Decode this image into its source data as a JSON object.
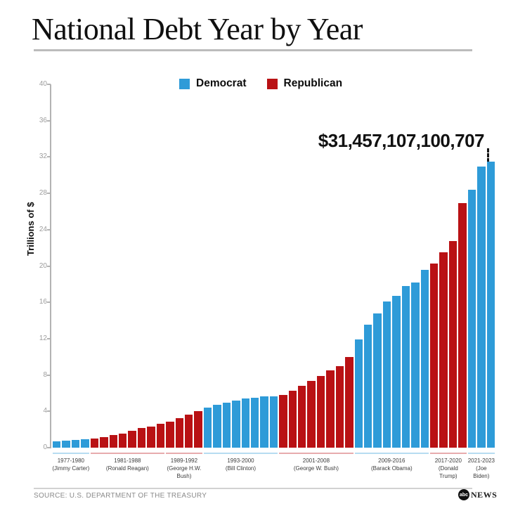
{
  "header": {
    "title": "National Debt Year by Year"
  },
  "legend": {
    "items": [
      {
        "label": "Democrat",
        "color": "#2E9BD8"
      },
      {
        "label": "Republican",
        "color": "#B91114"
      }
    ]
  },
  "chart_data": {
    "type": "bar",
    "title": "National Debt Year by Year",
    "xlabel": "",
    "ylabel": "Trillions of $",
    "ylim": [
      0,
      40
    ],
    "yticks": [
      0,
      4,
      8,
      12,
      16,
      20,
      24,
      28,
      32,
      36,
      40
    ],
    "grid": false,
    "legend_position": "top",
    "series_colors": {
      "Democrat": "#2E9BD8",
      "Republican": "#B91114"
    },
    "annotation": {
      "text": "$31,457,107,100,707",
      "value_trillions": 31.457107100707,
      "applies_to_year": 2023
    },
    "groups": [
      {
        "years": "1977-1980",
        "president": "Jimmy Carter",
        "president_lines": [
          "(Jimmy Carter)"
        ],
        "party": "Democrat",
        "values": [
          0.7,
          0.77,
          0.83,
          0.91
        ]
      },
      {
        "years": "1981-1988",
        "president": "Ronald Reagan",
        "president_lines": [
          "(Ronald Reagan)"
        ],
        "party": "Republican",
        "values": [
          1.03,
          1.14,
          1.38,
          1.57,
          1.82,
          2.13,
          2.35,
          2.6
        ]
      },
      {
        "years": "1989-1992",
        "president": "George H.W. Bush",
        "president_lines": [
          "(George H.W.",
          "Bush)"
        ],
        "party": "Republican",
        "values": [
          2.86,
          3.23,
          3.67,
          4.06
        ]
      },
      {
        "years": "1993-2000",
        "president": "Bill Clinton",
        "president_lines": [
          "(Bill Clinton)"
        ],
        "party": "Democrat",
        "values": [
          4.41,
          4.69,
          4.97,
          5.22,
          5.41,
          5.53,
          5.66,
          5.67
        ]
      },
      {
        "years": "2001-2008",
        "president": "George W. Bush",
        "president_lines": [
          "(George W. Bush)"
        ],
        "party": "Republican",
        "values": [
          5.81,
          6.23,
          6.78,
          7.38,
          7.93,
          8.51,
          9.01,
          10.02
        ]
      },
      {
        "years": "2009-2016",
        "president": "Barack Obama",
        "president_lines": [
          "(Barack Obama)"
        ],
        "party": "Democrat",
        "values": [
          11.91,
          13.56,
          14.79,
          16.07,
          16.74,
          17.82,
          18.15,
          19.57
        ]
      },
      {
        "years": "2017-2020",
        "president": "Donald Trump",
        "president_lines": [
          "(Donald",
          "Trump)"
        ],
        "party": "Republican",
        "values": [
          20.24,
          21.52,
          22.72,
          26.95
        ]
      },
      {
        "years": "2021-2023",
        "president": "Joe Biden",
        "president_lines": [
          "(Joe",
          "Biden)"
        ],
        "party": "Democrat",
        "values": [
          28.43,
          30.93,
          31.46
        ]
      }
    ]
  },
  "footer": {
    "source": "SOURCE: U.S. DEPARTMENT OF THE TREASURY",
    "logo": {
      "circle_text": "abc",
      "name": "NEWS"
    }
  }
}
